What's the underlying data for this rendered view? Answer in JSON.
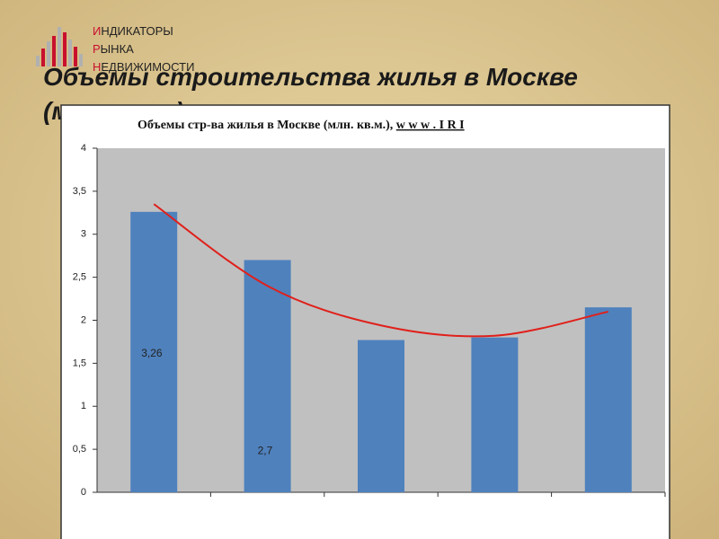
{
  "logo": {
    "lines": [
      [
        "И",
        "НДИКАТОРЫ"
      ],
      [
        "Р",
        "ЫНКА"
      ],
      [
        "Н",
        "ЕДВИЖИМОСТИ"
      ]
    ]
  },
  "slide_title": [
    "Объемы строительства жилья в Москве",
    "(млн. кв.м.)"
  ],
  "chart_data": {
    "type": "bar",
    "title": "Объемы стр-ва жилья в Москве (млн. кв.м.),",
    "title_link": "w w w . I R I",
    "categories": [
      null,
      null,
      null,
      null,
      null
    ],
    "values": [
      3.26,
      2.7,
      1.77,
      1.8,
      2.15
    ],
    "value_labels": [
      "3,26",
      "2,7",
      null,
      null,
      null
    ],
    "color": "#4f81bd",
    "trend": {
      "color": "#e0201b",
      "values": [
        3.35,
        2.4,
        1.94,
        1.82,
        2.1
      ]
    },
    "plot_background": "#c0c0c0",
    "ylim": [
      0,
      4
    ],
    "yticks": [
      0,
      {
        "value": 0.5,
        "label": "0,5"
      },
      1,
      {
        "value": 1.5,
        "label": "1,5"
      },
      2,
      {
        "value": 2.5,
        "label": "2,5"
      },
      3,
      {
        "value": 3.5,
        "label": "3,5"
      },
      4
    ],
    "grid": false
  }
}
